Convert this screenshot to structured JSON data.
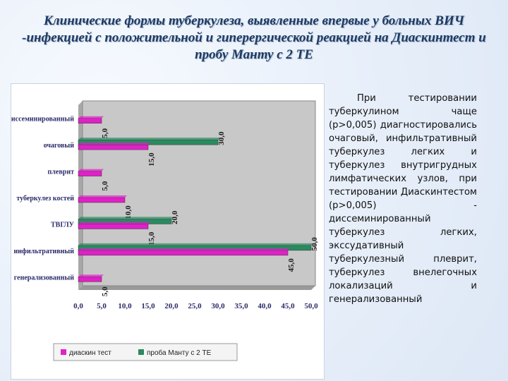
{
  "title": "Клинические формы туберкулеза, выявленные впервые у больных ВИЧ -инфекцией с положительной и гиперергической реакцией на Диаскинтест и пробу Манту с 2 ТЕ",
  "side_text": "При тестировании туберкулином чаще (р>0,005) диагностировались очаговый, инфильтративный туберкулез легких и туберкулез внутригрудных лимфатических узлов, при тестировании Диаскинтестом (р>0,005) - диссеминированный туберкулез легких, экссудативный туберкулезный плеврит, туберкулез внелегочных локализаций и генерализованный",
  "colors": {
    "series_a": "#e020c8",
    "series_b": "#2a8a60",
    "plot_bg": "#c8c8c8",
    "plot_frame": "#888888"
  },
  "chart_data": {
    "type": "bar",
    "orientation": "horizontal",
    "title": "",
    "xlabel": "",
    "ylabel": "",
    "xlim": [
      0,
      50
    ],
    "x_ticks": [
      "0,0",
      "5,0",
      "10,0",
      "15,0",
      "20,0",
      "25,0",
      "30,0",
      "35,0",
      "40,0",
      "45,0",
      "50,0"
    ],
    "x_tick_values": [
      0,
      5,
      10,
      15,
      20,
      25,
      30,
      35,
      40,
      45,
      50
    ],
    "grid": false,
    "legend_position": "bottom",
    "categories": [
      "диссеминированный",
      "очаговый",
      "плеврит",
      "туберкулез костей",
      "ТВГЛУ",
      "инфильтративный",
      "генерализованный"
    ],
    "series": [
      {
        "name": "диаскин тест",
        "values": [
          5.0,
          15.0,
          5.0,
          10.0,
          15.0,
          45.0,
          5.0
        ],
        "labels": [
          "5,0",
          "15,0",
          "5,0",
          "10,0",
          "15,0",
          "45,0",
          "5,0"
        ]
      },
      {
        "name": "проба Манту с 2 ТЕ",
        "values": [
          0,
          30.0,
          0,
          0,
          20.0,
          50.0,
          0
        ],
        "labels": [
          "",
          "30,0",
          "",
          "",
          "20,0",
          "50,0",
          ""
        ]
      }
    ]
  }
}
